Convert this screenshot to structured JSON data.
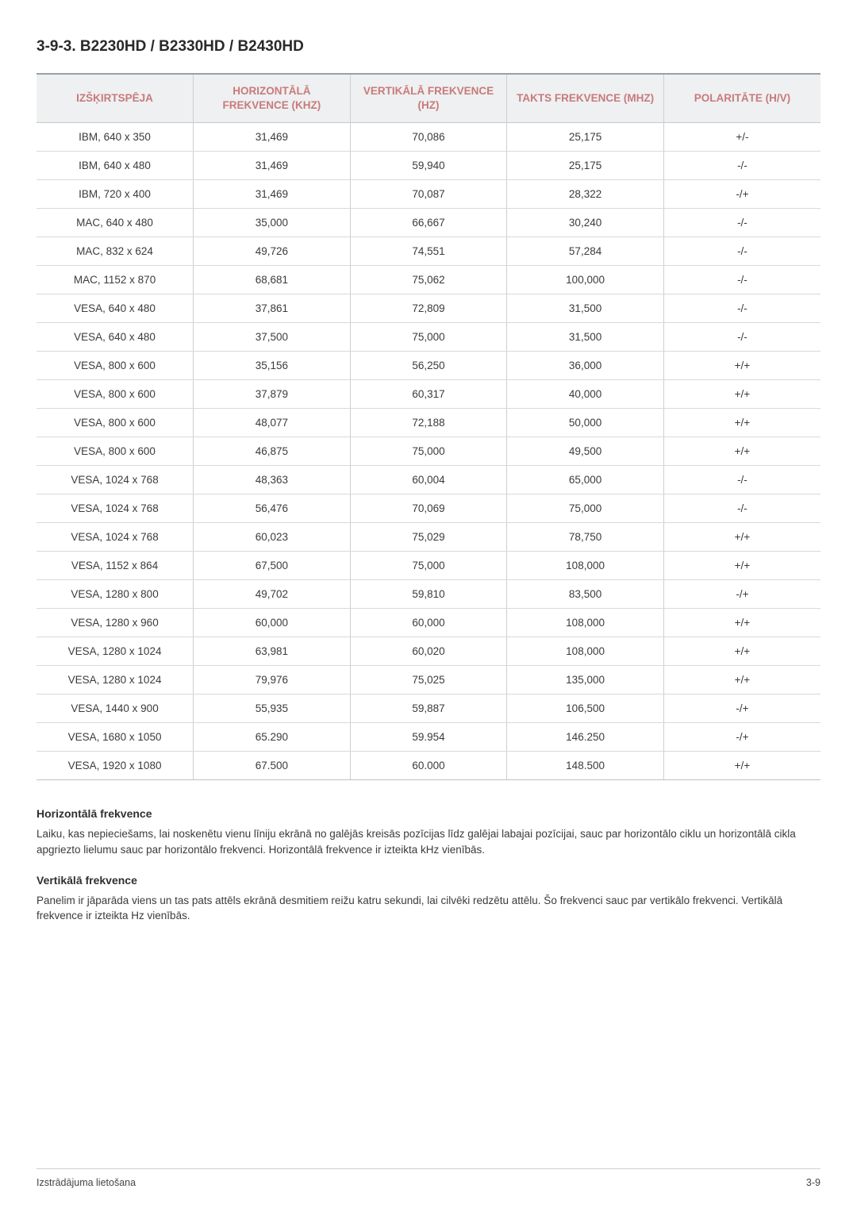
{
  "section_title": "3-9-3. B2230HD / B2330HD / B2430HD",
  "table": {
    "columns": [
      "IZŠĶIRTSPĒJA",
      "HORIZONTĀLĀ FREKVENCE (KHZ)",
      "VERTIKĀLĀ FREKVENCE (HZ)",
      "TAKTS FREKVENCE (MHZ)",
      "POLARITĀTE (H/V)"
    ],
    "header_color": "#c97a7c",
    "header_bg": "#eef0f1",
    "rows": [
      [
        "IBM, 640 x 350",
        "31,469",
        "70,086",
        "25,175",
        "+/-"
      ],
      [
        "IBM, 640 x 480",
        "31,469",
        "59,940",
        "25,175",
        "-/-"
      ],
      [
        "IBM, 720 x 400",
        "31,469",
        "70,087",
        "28,322",
        "-/+"
      ],
      [
        "MAC, 640 x 480",
        "35,000",
        "66,667",
        "30,240",
        "-/-"
      ],
      [
        "MAC, 832 x 624",
        "49,726",
        "74,551",
        "57,284",
        "-/-"
      ],
      [
        "MAC, 1152 x 870",
        "68,681",
        "75,062",
        "100,000",
        "-/-"
      ],
      [
        "VESA, 640 x 480",
        "37,861",
        "72,809",
        "31,500",
        "-/-"
      ],
      [
        "VESA, 640 x 480",
        "37,500",
        "75,000",
        "31,500",
        "-/-"
      ],
      [
        "VESA, 800 x 600",
        "35,156",
        "56,250",
        "36,000",
        "+/+"
      ],
      [
        "VESA, 800 x 600",
        "37,879",
        "60,317",
        "40,000",
        "+/+"
      ],
      [
        "VESA, 800 x 600",
        "48,077",
        "72,188",
        "50,000",
        "+/+"
      ],
      [
        "VESA, 800 x 600",
        "46,875",
        "75,000",
        "49,500",
        "+/+"
      ],
      [
        "VESA, 1024 x 768",
        "48,363",
        "60,004",
        "65,000",
        "-/-"
      ],
      [
        "VESA, 1024 x 768",
        "56,476",
        "70,069",
        "75,000",
        "-/-"
      ],
      [
        "VESA, 1024 x 768",
        "60,023",
        "75,029",
        "78,750",
        "+/+"
      ],
      [
        "VESA, 1152 x 864",
        "67,500",
        "75,000",
        "108,000",
        "+/+"
      ],
      [
        "VESA, 1280 x 800",
        "49,702",
        "59,810",
        "83,500",
        "-/+"
      ],
      [
        "VESA, 1280 x 960",
        "60,000",
        "60,000",
        "108,000",
        "+/+"
      ],
      [
        "VESA, 1280 x 1024",
        "63,981",
        "60,020",
        "108,000",
        "+/+"
      ],
      [
        "VESA, 1280 x 1024",
        "79,976",
        "75,025",
        "135,000",
        "+/+"
      ],
      [
        "VESA, 1440 x 900",
        "55,935",
        "59,887",
        "106,500",
        "-/+"
      ],
      [
        "VESA, 1680 x 1050",
        "65.290",
        "59.954",
        "146.250",
        "-/+"
      ],
      [
        "VESA, 1920 x 1080",
        "67.500",
        "60.000",
        "148.500",
        "+/+"
      ]
    ]
  },
  "paragraphs": [
    {
      "title": "Horizontālā frekvence",
      "text": "Laiku, kas nepieciešams, lai noskenētu vienu līniju ekrānā no galējās kreisās pozīcijas līdz galējai labajai pozīcijai, sauc par horizontālo ciklu un horizontālā cikla apgriezto lielumu sauc par horizontālo frekvenci. Horizontālā frekvence ir izteikta kHz vienībās."
    },
    {
      "title": "Vertikālā frekvence",
      "text": "Panelim ir jāparāda viens un tas pats attēls ekrānā desmitiem reižu katru sekundi, lai cilvēki redzētu attēlu. Šo frekvenci sauc par vertikālo frekvenci. Vertikālā frekvence ir izteikta Hz vienībās."
    }
  ],
  "footer": {
    "left": "Izstrādājuma lietošana",
    "right": "3-9"
  }
}
